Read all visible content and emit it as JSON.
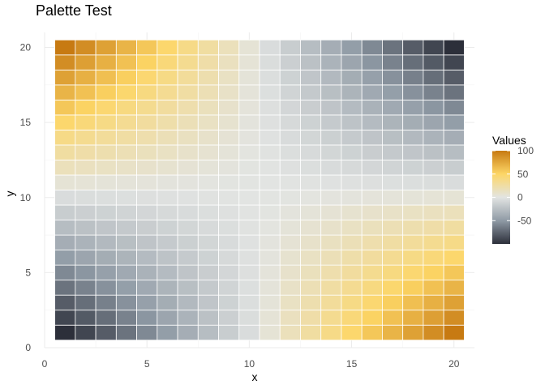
{
  "chart_data": {
    "type": "heatmap",
    "title": "Palette Test",
    "xlabel": "x",
    "ylabel": "y",
    "x": [
      1,
      2,
      3,
      4,
      5,
      6,
      7,
      8,
      9,
      10,
      11,
      12,
      13,
      14,
      15,
      16,
      17,
      18,
      19,
      20
    ],
    "y": [
      1,
      2,
      3,
      4,
      5,
      6,
      7,
      8,
      9,
      10,
      11,
      12,
      13,
      14,
      15,
      16,
      17,
      18,
      19,
      20
    ],
    "value_rule": "value(x, y) = (x - 10.5) * (y - 10.5) * (-100 / 90.25)",
    "xlim": [
      0,
      21
    ],
    "ylim": [
      0,
      21
    ],
    "x_ticks": [
      0,
      5,
      10,
      15,
      20
    ],
    "y_ticks": [
      0,
      5,
      10,
      15,
      20
    ],
    "legend": {
      "title": "Values",
      "range": [
        -100,
        100
      ],
      "ticks": [
        100,
        50,
        0,
        -50
      ],
      "placement": "right"
    },
    "colors": {
      "min": "#2c2f3a",
      "mid_low": "#8f9aa5",
      "zero": "#e2e4e2",
      "mid_high": "#fdd666",
      "max": "#c77a12",
      "tile_border": "#ffffff",
      "panel_grid": "#ebebeb"
    },
    "grid": true
  }
}
